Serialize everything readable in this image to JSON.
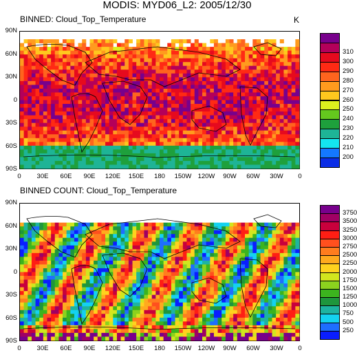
{
  "title": "MODIS: MYD06_L2: 2005/12/30",
  "latitude_labels": [
    "90N",
    "60N",
    "30N",
    "0",
    "30S",
    "60S",
    "90S"
  ],
  "longitude_labels": [
    "0",
    "30E",
    "60E",
    "90E",
    "120E",
    "150E",
    "180",
    "150W",
    "120W",
    "90W",
    "60W",
    "30W",
    "0"
  ],
  "panels": [
    {
      "title": "BINNED: Cloud_Top_Temperature",
      "units": "K",
      "field": "temperature",
      "legend_colors": [
        "#0a2de6",
        "#1478ff",
        "#14e6f0",
        "#1eb496",
        "#1ea03c",
        "#64c81e",
        "#dcf01e",
        "#ffc81e",
        "#ff9b1e",
        "#ff641e",
        "#ff2a14",
        "#e60a1e",
        "#b4005a",
        "#78008c"
      ],
      "legend_labels": [
        "200",
        "210",
        "220",
        "230",
        "240",
        "250",
        "260",
        "270",
        "280",
        "290",
        "300",
        "310"
      ]
    },
    {
      "title": "BINNED COUNT: Cloud_Top_Temperature",
      "units": "",
      "field": "count",
      "legend_colors": [
        "#0a1eff",
        "#1e6eff",
        "#14d2f0",
        "#1eb4a0",
        "#1e963c",
        "#3cb41e",
        "#8cd21e",
        "#d2e61e",
        "#ffd21e",
        "#ffaa1e",
        "#ff7d1e",
        "#ff501e",
        "#ff1e14",
        "#c8003c",
        "#a00064",
        "#78008c"
      ],
      "legend_labels": [
        "250",
        "500",
        "750",
        "1000",
        "1250",
        "1500",
        "1750",
        "2000",
        "2250",
        "2500",
        "2750",
        "3000",
        "3250",
        "3500",
        "3750"
      ]
    }
  ]
}
